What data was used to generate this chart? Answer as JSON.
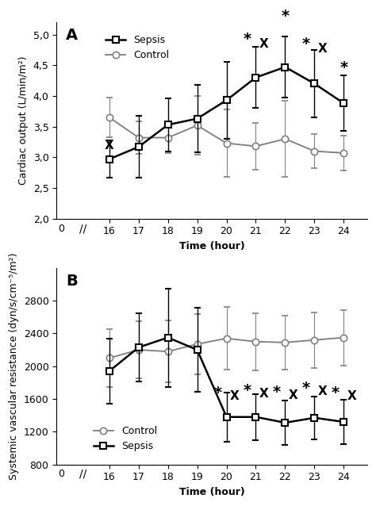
{
  "time": [
    16,
    17,
    18,
    19,
    20,
    21,
    22,
    23,
    24
  ],
  "co_sepsis_mean": [
    2.97,
    3.17,
    3.53,
    3.63,
    3.93,
    4.3,
    4.47,
    4.2,
    3.88
  ],
  "co_sepsis_err_lo": [
    0.3,
    0.5,
    0.43,
    0.55,
    0.63,
    0.5,
    0.5,
    0.55,
    0.45
  ],
  "co_sepsis_err_hi": [
    0.3,
    0.5,
    0.43,
    0.55,
    0.63,
    0.5,
    0.5,
    0.55,
    0.45
  ],
  "co_control_mean": [
    3.65,
    3.32,
    3.32,
    3.52,
    3.23,
    3.18,
    3.3,
    3.1,
    3.07
  ],
  "co_control_err_lo": [
    0.32,
    0.27,
    0.25,
    0.48,
    0.55,
    0.38,
    0.62,
    0.28,
    0.28
  ],
  "co_control_err_hi": [
    0.32,
    0.27,
    0.25,
    0.48,
    0.55,
    0.38,
    0.62,
    0.28,
    0.28
  ],
  "svr_control_mean": [
    2100,
    2200,
    2180,
    2270,
    2340,
    2300,
    2290,
    2320,
    2350
  ],
  "svr_control_err_lo": [
    350,
    350,
    380,
    370,
    380,
    350,
    330,
    340,
    340
  ],
  "svr_control_err_hi": [
    350,
    350,
    380,
    370,
    380,
    350,
    330,
    340,
    340
  ],
  "svr_sepsis_mean": [
    1940,
    2230,
    2350,
    2200,
    1380,
    1380,
    1310,
    1370,
    1320
  ],
  "svr_sepsis_err_lo": [
    400,
    420,
    600,
    510,
    300,
    280,
    270,
    260,
    270
  ],
  "svr_sepsis_err_hi": [
    400,
    420,
    600,
    510,
    300,
    280,
    270,
    260,
    270
  ],
  "panel_A_label": "A",
  "panel_B_label": "B",
  "co_ylabel": "Cardiac output (L/min/m²)",
  "co_xlabel": "Time (hour)",
  "co_ylim": [
    2.0,
    5.2
  ],
  "co_yticks": [
    2.0,
    2.5,
    3.0,
    3.5,
    4.0,
    4.5,
    5.0
  ],
  "svr_ylabel": "Systemic vascular resistance (dyn/s/cm⁻⁵/m²)",
  "svr_xlabel": "Time (hour)",
  "svr_ylim": [
    800,
    3200
  ],
  "svr_yticks": [
    800,
    1200,
    1600,
    2000,
    2400,
    2800
  ],
  "line_color": "#000000",
  "gray_color": "#808080",
  "linewidth": 1.8,
  "markersize": 6,
  "capsize": 3,
  "elinewidth": 1.0,
  "legend_fontsize": 9,
  "label_fontsize": 9,
  "tick_fontsize": 9,
  "annot_fontsize": 11,
  "panel_fontsize": 14
}
